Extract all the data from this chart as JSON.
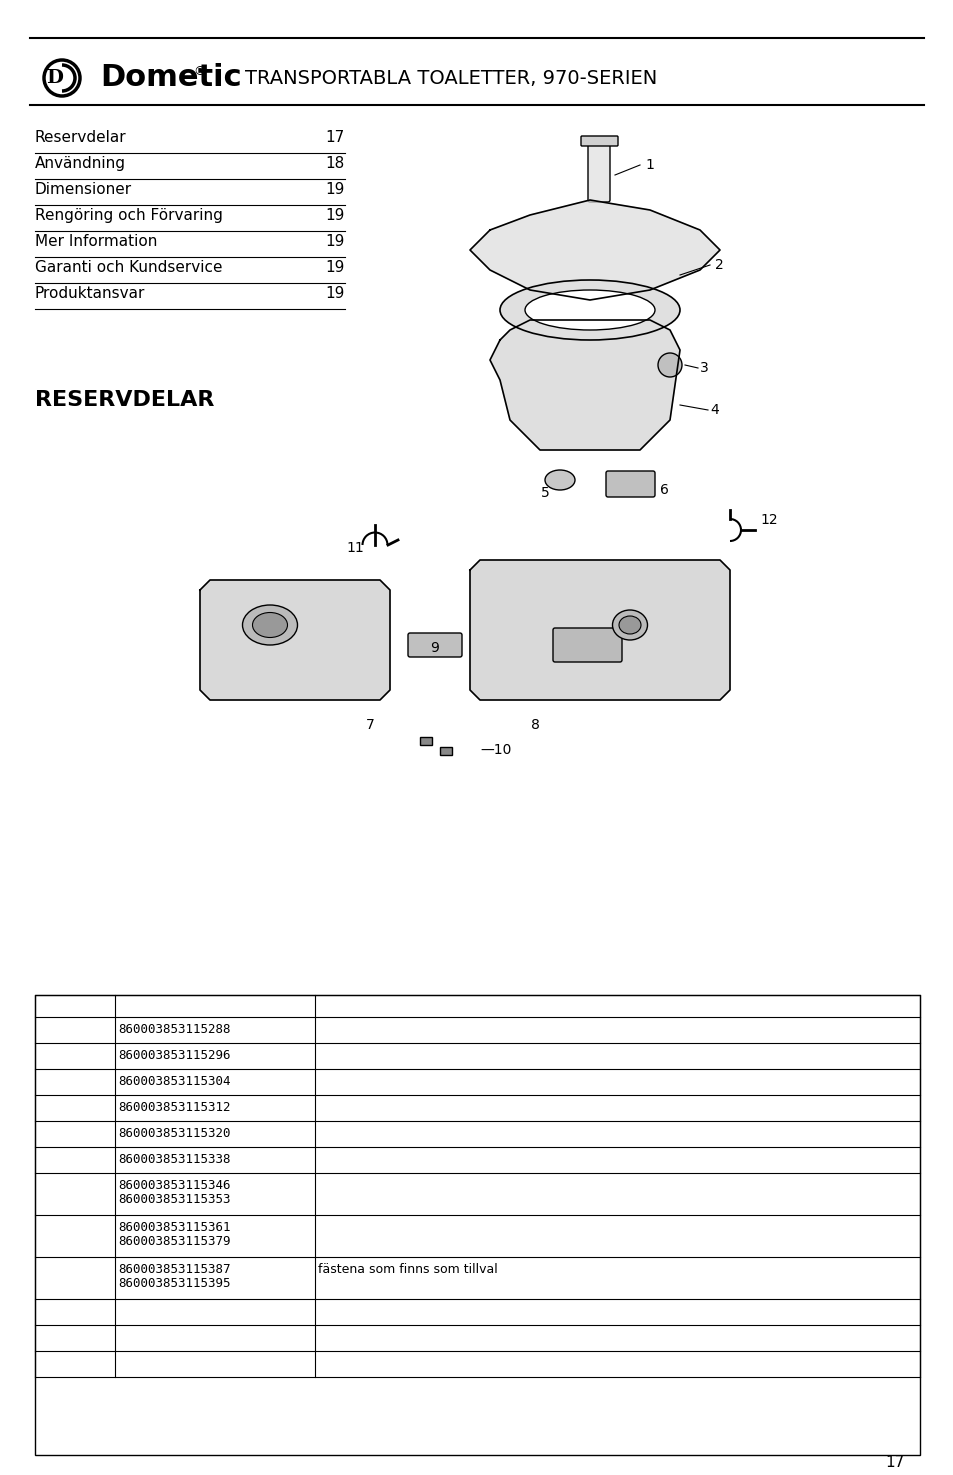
{
  "bg_color": "#ffffff",
  "header_line_color": "#000000",
  "title_text": "TRANSPORTABLA TOALETTER, 970-SERIEN",
  "toc_items": [
    [
      "Reservdelar",
      "17"
    ],
    [
      "Användning",
      "18"
    ],
    [
      "Dimensioner",
      "19"
    ],
    [
      "Rengöring och Förvaring",
      "19"
    ],
    [
      "Mer Information",
      "19"
    ],
    [
      "Garanti och Kundservice",
      "19"
    ],
    [
      "Produktansvar",
      "19"
    ]
  ],
  "section_title": "RESERVDELAR",
  "table_col1_header": "",
  "table_col2_header": "",
  "table_col3_header": "",
  "table_rows": [
    [
      "",
      "",
      ""
    ],
    [
      "860003853115288",
      "",
      ""
    ],
    [
      "860003853115296",
      "",
      ""
    ],
    [
      "860003853115304",
      "",
      ""
    ],
    [
      "860003853115312",
      "",
      ""
    ],
    [
      "860003853115320",
      "",
      ""
    ],
    [
      "860003853115338",
      "",
      ""
    ],
    [
      "860003853115346\n860003853115353",
      "",
      ""
    ],
    [
      "860003853115361\n860003853115379",
      "",
      ""
    ],
    [
      "860003853115387\n860003853115395",
      "",
      "fästena som finns som tillval"
    ],
    [
      "",
      "",
      ""
    ],
    [
      "",
      "",
      ""
    ],
    [
      "",
      "",
      ""
    ]
  ],
  "page_number": "17",
  "footer_color": "#000000"
}
